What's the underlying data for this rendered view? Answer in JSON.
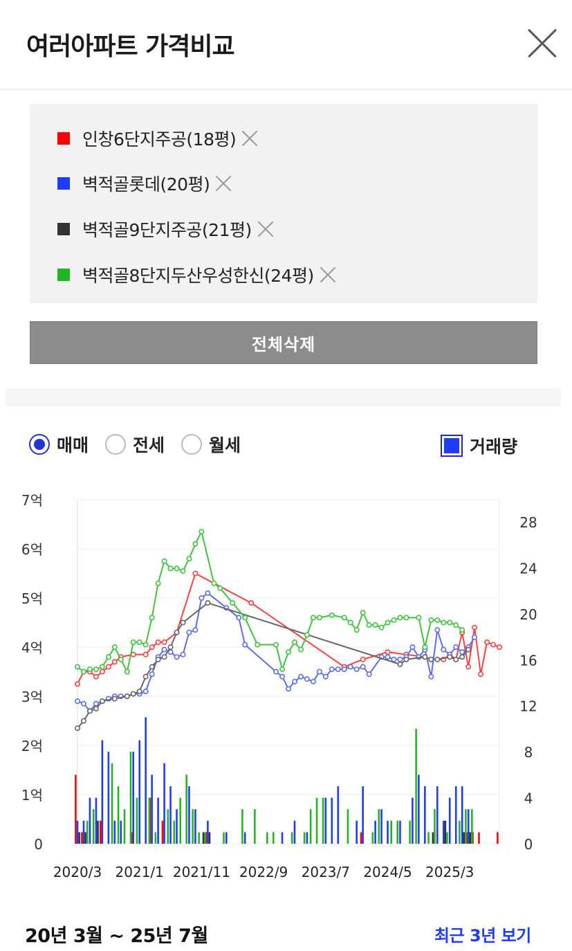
{
  "header": {
    "title": "여러아파트 가격비교"
  },
  "apartments": [
    {
      "label": "인창6단지주공(18평)",
      "color": "#ff0000"
    },
    {
      "label": "벽적골롯데(20평)",
      "color": "#1f3bff"
    },
    {
      "label": "벽적골9단지주공(21평)",
      "color": "#333333"
    },
    {
      "label": "벽적골8단지두산우성한신(24평)",
      "color": "#22b522"
    }
  ],
  "delete_all_label": "전체삭제",
  "tabs": {
    "sale": "매매",
    "jeonse": "전세",
    "monthly": "월세",
    "selected": "매매"
  },
  "volume_toggle": {
    "label": "거래량",
    "checked": true
  },
  "chart_data": {
    "type": "line",
    "y_left": {
      "ticks": [
        "0",
        "1억",
        "2억",
        "3억",
        "4억",
        "5억",
        "6억",
        "7억"
      ],
      "range": [
        0,
        7
      ],
      "unit": "억"
    },
    "y_right": {
      "ticks": [
        "0",
        "4",
        "8",
        "12",
        "16",
        "20",
        "24",
        "28"
      ],
      "range": [
        0,
        28
      ]
    },
    "x_ticks": [
      "2020/3",
      "2021/1",
      "2021/11",
      "2022/9",
      "2023/7",
      "2024/5",
      "2025/3"
    ],
    "x_range": [
      0,
      65
    ],
    "series": [
      {
        "name": "인창6단지주공(18평)",
        "color": "#ff4040",
        "points": [
          [
            0,
            3.25
          ],
          [
            1,
            3.5
          ],
          [
            2,
            3.5
          ],
          [
            3,
            3.4
          ],
          [
            4,
            3.5
          ],
          [
            5,
            3.6
          ],
          [
            6,
            3.7
          ],
          [
            7,
            3.8
          ],
          [
            9,
            3.85
          ],
          [
            11,
            3.85
          ],
          [
            12,
            4.0
          ],
          [
            13,
            4.1
          ],
          [
            14,
            4.1
          ],
          [
            16,
            4.3
          ],
          [
            19,
            5.5
          ],
          [
            28,
            4.9
          ],
          [
            43,
            3.6
          ],
          [
            46,
            3.75
          ],
          [
            50,
            3.9
          ],
          [
            53,
            3.85
          ],
          [
            56,
            3.8
          ],
          [
            57,
            3.75
          ],
          [
            59,
            3.75
          ],
          [
            60,
            3.85
          ],
          [
            61,
            3.75
          ],
          [
            62,
            4.3
          ],
          [
            63,
            3.6
          ],
          [
            64,
            4.4
          ],
          [
            65,
            3.45
          ],
          [
            66,
            4.1
          ],
          [
            67,
            4.05
          ],
          [
            68,
            4.0
          ]
        ]
      },
      {
        "name": "벽적골롯데(20평)",
        "color": "#5a6cf0",
        "points": [
          [
            0,
            2.9
          ],
          [
            1,
            2.85
          ],
          [
            2,
            2.7
          ],
          [
            3,
            2.85
          ],
          [
            4,
            2.9
          ],
          [
            5,
            2.95
          ],
          [
            6,
            3.0
          ],
          [
            7,
            3.0
          ],
          [
            8,
            3.0
          ],
          [
            9,
            3.05
          ],
          [
            10,
            3.05
          ],
          [
            11,
            3.1
          ],
          [
            12,
            3.45
          ],
          [
            13,
            3.8
          ],
          [
            14,
            3.95
          ],
          [
            15,
            3.9
          ],
          [
            16,
            3.8
          ],
          [
            17,
            3.85
          ],
          [
            18,
            4.3
          ],
          [
            19,
            4.35
          ],
          [
            20,
            5.0
          ],
          [
            21,
            5.1
          ],
          [
            24,
            4.8
          ],
          [
            26,
            4.6
          ],
          [
            27,
            4.05
          ],
          [
            32,
            3.5
          ],
          [
            33,
            3.4
          ],
          [
            34,
            3.15
          ],
          [
            35,
            3.3
          ],
          [
            36,
            3.4
          ],
          [
            37,
            3.35
          ],
          [
            38,
            3.3
          ],
          [
            39,
            3.5
          ],
          [
            40,
            3.4
          ],
          [
            41,
            3.55
          ],
          [
            42,
            3.55
          ],
          [
            43,
            3.55
          ],
          [
            44,
            3.6
          ],
          [
            45,
            3.55
          ],
          [
            46,
            3.6
          ],
          [
            47,
            3.45
          ],
          [
            49,
            3.8
          ],
          [
            50,
            3.8
          ],
          [
            51,
            3.75
          ],
          [
            52,
            3.75
          ],
          [
            53,
            3.8
          ],
          [
            54,
            4.0
          ],
          [
            55,
            3.8
          ],
          [
            56,
            3.95
          ],
          [
            57,
            3.4
          ],
          [
            58,
            4.35
          ],
          [
            59,
            3.95
          ],
          [
            60,
            3.85
          ],
          [
            61,
            4.0
          ],
          [
            62,
            3.9
          ],
          [
            63,
            4.0
          ],
          [
            64,
            4.2
          ]
        ]
      },
      {
        "name": "벽적골9단지주공(21평)",
        "color": "#666666",
        "points": [
          [
            0,
            2.35
          ],
          [
            1,
            2.5
          ],
          [
            2,
            2.7
          ],
          [
            3,
            2.75
          ],
          [
            4,
            2.9
          ],
          [
            6,
            2.95
          ],
          [
            8,
            3.0
          ],
          [
            9,
            3.05
          ],
          [
            10,
            3.1
          ],
          [
            11,
            3.4
          ],
          [
            12,
            3.6
          ],
          [
            13,
            3.75
          ],
          [
            14,
            3.8
          ],
          [
            15,
            4.0
          ],
          [
            16,
            4.3
          ],
          [
            17,
            4.5
          ],
          [
            21,
            4.9
          ],
          [
            52,
            3.65
          ],
          [
            53,
            3.75
          ],
          [
            56,
            3.8
          ],
          [
            57,
            3.75
          ],
          [
            58,
            3.75
          ],
          [
            60,
            3.8
          ],
          [
            61,
            3.75
          ],
          [
            62,
            3.8
          ],
          [
            63,
            3.95
          ]
        ]
      },
      {
        "name": "벽적골8단지두산우성한신(24평)",
        "color": "#3ec43e",
        "points": [
          [
            0,
            3.6
          ],
          [
            1,
            3.5
          ],
          [
            2,
            3.55
          ],
          [
            3,
            3.55
          ],
          [
            4,
            3.6
          ],
          [
            5,
            3.8
          ],
          [
            6,
            4.0
          ],
          [
            7,
            3.75
          ],
          [
            8,
            3.5
          ],
          [
            9,
            4.1
          ],
          [
            10,
            4.1
          ],
          [
            11,
            4.05
          ],
          [
            12,
            4.6
          ],
          [
            13,
            5.3
          ],
          [
            14,
            5.75
          ],
          [
            15,
            5.6
          ],
          [
            16,
            5.6
          ],
          [
            17,
            5.55
          ],
          [
            18,
            5.8
          ],
          [
            19,
            6.1
          ],
          [
            20,
            6.35
          ],
          [
            22,
            5.3
          ],
          [
            23,
            5.2
          ],
          [
            25,
            4.9
          ],
          [
            27,
            4.6
          ],
          [
            29,
            4.05
          ],
          [
            32,
            4.05
          ],
          [
            33,
            3.55
          ],
          [
            34,
            3.9
          ],
          [
            35,
            4.1
          ],
          [
            36,
            3.95
          ],
          [
            37,
            4.25
          ],
          [
            38,
            4.6
          ],
          [
            39,
            4.6
          ],
          [
            41,
            4.65
          ],
          [
            43,
            4.6
          ],
          [
            44,
            4.5
          ],
          [
            45,
            4.35
          ],
          [
            46,
            4.7
          ],
          [
            47,
            4.45
          ],
          [
            48,
            4.45
          ],
          [
            49,
            4.4
          ],
          [
            50,
            4.5
          ],
          [
            51,
            4.55
          ],
          [
            52,
            4.6
          ],
          [
            53,
            4.6
          ],
          [
            55,
            4.6
          ],
          [
            56,
            4.0
          ],
          [
            57,
            4.55
          ],
          [
            58,
            4.55
          ],
          [
            59,
            4.5
          ],
          [
            60,
            4.5
          ],
          [
            61,
            4.45
          ],
          [
            62,
            4.35
          ]
        ]
      }
    ],
    "volume": [
      {
        "series": "인창6단지주공(18평)",
        "color": "#ff0000",
        "bars": [
          [
            0,
            6
          ],
          [
            1,
            1
          ],
          [
            4,
            2
          ],
          [
            9,
            1
          ],
          [
            12,
            4
          ],
          [
            14,
            2
          ],
          [
            21,
            1
          ],
          [
            46,
            1
          ],
          [
            63,
            1
          ],
          [
            64,
            1
          ],
          [
            65,
            1
          ],
          [
            68,
            1
          ]
        ]
      },
      {
        "series": "벽적골롯데(20평)",
        "color": "#1f3bff",
        "bars": [
          [
            0,
            2
          ],
          [
            1,
            2
          ],
          [
            2,
            4
          ],
          [
            3,
            4
          ],
          [
            4,
            9
          ],
          [
            5,
            8
          ],
          [
            6,
            2
          ],
          [
            7,
            2
          ],
          [
            9,
            8
          ],
          [
            10,
            9
          ],
          [
            11,
            11
          ],
          [
            12,
            6
          ],
          [
            13,
            4
          ],
          [
            14,
            7
          ],
          [
            15,
            5
          ],
          [
            16,
            3
          ],
          [
            18,
            5
          ],
          [
            19,
            3
          ],
          [
            21,
            2
          ],
          [
            24,
            1
          ],
          [
            27,
            1
          ],
          [
            33,
            1
          ],
          [
            35,
            2
          ],
          [
            37,
            1
          ],
          [
            40,
            4
          ],
          [
            41,
            4
          ],
          [
            42,
            5
          ],
          [
            45,
            2
          ],
          [
            46,
            5
          ],
          [
            48,
            2
          ],
          [
            49,
            3
          ],
          [
            50,
            2
          ],
          [
            52,
            2
          ],
          [
            54,
            4
          ],
          [
            55,
            6
          ],
          [
            56,
            5
          ],
          [
            58,
            5
          ],
          [
            59,
            2
          ],
          [
            60,
            4
          ],
          [
            61,
            5
          ],
          [
            62,
            5
          ],
          [
            63,
            3
          ]
        ]
      },
      {
        "series": "벽적골9단지주공(21평)",
        "color": "#333333",
        "bars": [
          [
            0,
            1
          ],
          [
            1,
            1
          ],
          [
            3,
            2
          ],
          [
            20,
            1
          ],
          [
            21,
            1
          ],
          [
            57,
            1
          ],
          [
            59,
            2
          ],
          [
            62,
            1
          ],
          [
            63,
            1
          ]
        ]
      },
      {
        "series": "벽적골8단지두산우성한신(24평)",
        "color": "#22b522",
        "bars": [
          [
            1,
            2
          ],
          [
            2,
            3
          ],
          [
            5,
            7
          ],
          [
            6,
            5
          ],
          [
            7,
            3
          ],
          [
            8,
            8
          ],
          [
            9,
            4
          ],
          [
            11,
            4
          ],
          [
            12,
            1
          ],
          [
            14,
            3
          ],
          [
            15,
            2
          ],
          [
            16,
            4
          ],
          [
            17,
            6
          ],
          [
            18,
            3
          ],
          [
            19,
            1
          ],
          [
            20,
            1
          ],
          [
            23,
            1
          ],
          [
            26,
            3
          ],
          [
            28,
            3
          ],
          [
            30,
            1
          ],
          [
            31,
            1
          ],
          [
            34,
            1
          ],
          [
            36,
            1
          ],
          [
            37,
            3
          ],
          [
            38,
            4
          ],
          [
            39,
            4
          ],
          [
            43,
            3
          ],
          [
            47,
            1
          ],
          [
            48,
            3
          ],
          [
            50,
            2
          ],
          [
            51,
            2
          ],
          [
            53,
            2
          ],
          [
            54,
            10
          ],
          [
            56,
            1
          ],
          [
            57,
            3
          ],
          [
            59,
            1
          ],
          [
            61,
            2
          ],
          [
            62,
            3
          ],
          [
            63,
            3
          ]
        ]
      }
    ]
  },
  "footer": {
    "range_text": "20년 3월 ~ 25년 7월",
    "recent_link": "최근 3년 보기"
  }
}
